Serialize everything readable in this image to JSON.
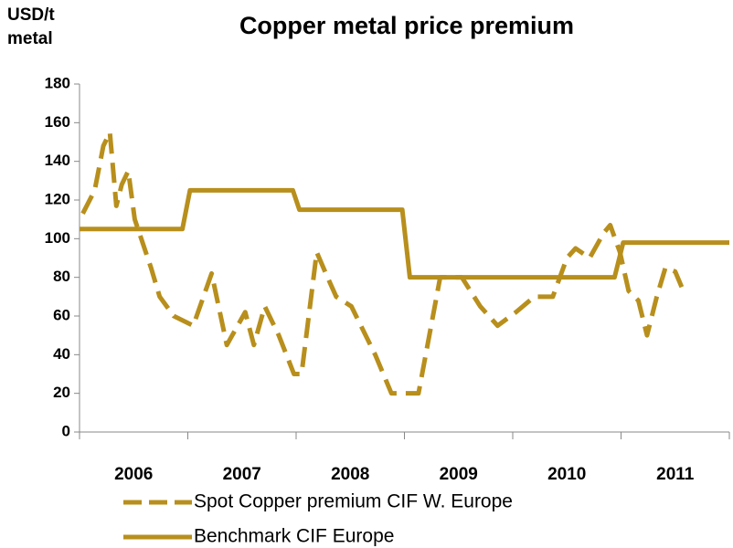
{
  "chart_data": {
    "type": "line",
    "title": "Copper metal price premium",
    "ylabel": "USD/t metal",
    "categories": [
      "2006",
      "2007",
      "2008",
      "2009",
      "2010",
      "2011"
    ],
    "xlim": [
      2006,
      2012
    ],
    "ylim": [
      0,
      180
    ],
    "yticks": [
      0,
      20,
      40,
      60,
      80,
      100,
      120,
      140,
      160,
      180
    ],
    "series": [
      {
        "name": "Spot Copper premium CIF W. Europe",
        "color": "#b88f1c",
        "dash": true,
        "x": [
          2006.03,
          2006.14,
          2006.22,
          2006.28,
          2006.34,
          2006.39,
          2006.45,
          2006.51,
          2006.57,
          2006.66,
          2006.74,
          2006.87,
          2007.05,
          2007.22,
          2007.36,
          2007.53,
          2007.61,
          2007.71,
          2007.84,
          2007.98,
          2008.05,
          2008.19,
          2008.29,
          2008.37,
          2008.51,
          2008.73,
          2008.88,
          2009.13,
          2009.33,
          2009.53,
          2009.7,
          2009.86,
          2010.03,
          2010.2,
          2010.37,
          2010.5,
          2010.58,
          2010.71,
          2010.84,
          2010.9,
          2010.99,
          2011.07,
          2011.16,
          2011.24,
          2011.33,
          2011.41,
          2011.5,
          2011.56
        ],
        "values": [
          113,
          125,
          148,
          155,
          117,
          128,
          135,
          110,
          100,
          85,
          70,
          60,
          55,
          82,
          45,
          62,
          45,
          65,
          50,
          30,
          30,
          93,
          80,
          70,
          65,
          40,
          20,
          20,
          80,
          80,
          65,
          55,
          62,
          70,
          70,
          90,
          95,
          90,
          103,
          107,
          93,
          73,
          68,
          50,
          70,
          85,
          83,
          75
        ]
      },
      {
        "name": "Benchmark CIF Europe",
        "color": "#b88f1c",
        "dash": false,
        "x": [
          2006,
          2006.95,
          2007.02,
          2007.97,
          2008.03,
          2008.98,
          2009.05,
          2010.94,
          2011.02,
          2012
        ],
        "values": [
          105,
          105,
          125,
          125,
          115,
          115,
          80,
          80,
          98,
          98
        ]
      }
    ]
  }
}
